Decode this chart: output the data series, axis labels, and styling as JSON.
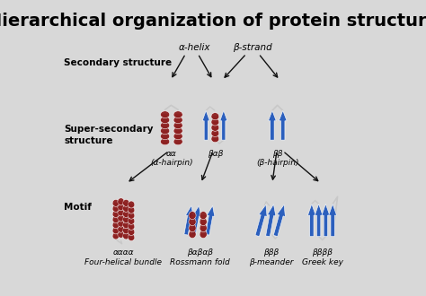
{
  "title": "Hierarchical organization of protein structure",
  "title_fontsize": 14,
  "title_fontweight": "bold",
  "background_color": "#d8d8d8",
  "labels": {
    "secondary_structure": "Secondary structure",
    "super_secondary": "Super-secondary\nstructure",
    "motif": "Motif",
    "alpha_helix": "α-helix",
    "beta_strand": "β-strand",
    "aa": "αα\n(α-hairpin)",
    "bab": "βαβ",
    "bb": "ββ\n(β-hairpin)",
    "aaaa": "αααα\nFour-helical bundle",
    "babab": "βαβαβ\nRossmann fold",
    "bbb": "βββ\nβ-meander",
    "bbbb": "ββββ\nGreek key"
  },
  "helix_color": "#8b1a1a",
  "strand_color": "#2b5fbd",
  "loop_color": "#c8c8c8",
  "arrow_color": "#111111",
  "fig_width": 4.74,
  "fig_height": 3.3,
  "dpi": 100
}
